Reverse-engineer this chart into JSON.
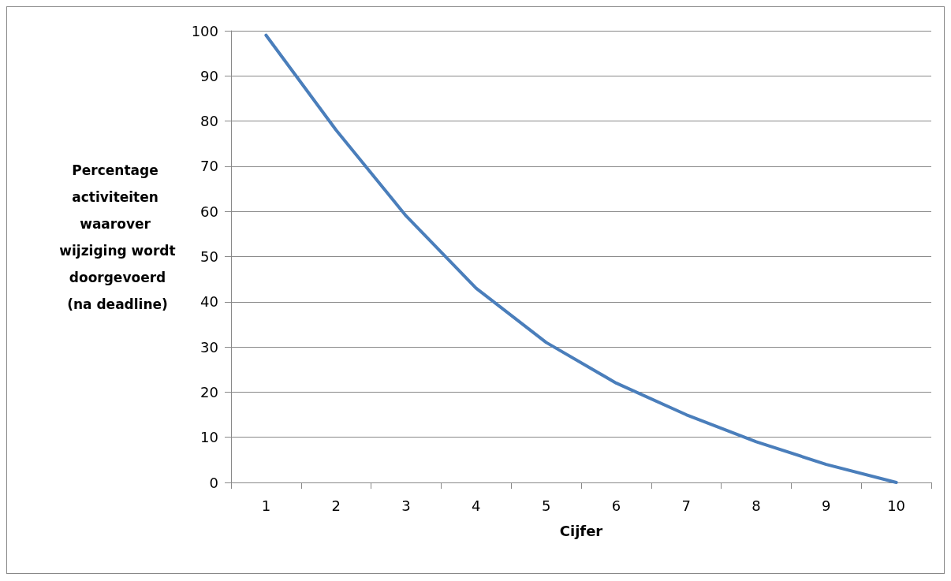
{
  "chart_data": {
    "type": "line",
    "xlabel": "Cijfer",
    "ylabel": "Percentage activiteiten waarover wijziging wordt doorgevoerd (na deadline)",
    "categories": [
      "1",
      "2",
      "3",
      "4",
      "5",
      "6",
      "7",
      "8",
      "9",
      "10"
    ],
    "series": [
      {
        "color": "#4a7ebb",
        "values": [
          99,
          78,
          59,
          43,
          31,
          22,
          15,
          9,
          4,
          0
        ]
      }
    ],
    "ylim": [
      0,
      100
    ],
    "yticks": [
      0,
      10,
      20,
      30,
      40,
      50,
      60,
      70,
      80,
      90,
      100
    ],
    "grid": "y",
    "marker": "none",
    "line_style": "solid"
  }
}
